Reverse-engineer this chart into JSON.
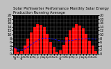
{
  "title": "Solar PV/Inverter Performance Monthly Solar Energy Production Running Average",
  "production": [
    3.2,
    1.0,
    1.5,
    4.2,
    7.8,
    11.2,
    13.8,
    15.5,
    15.0,
    13.8,
    10.5,
    6.2,
    3.5,
    1.2,
    1.8,
    4.8,
    8.5,
    12.0,
    13.5,
    15.2,
    14.8,
    13.2,
    10.2,
    6.8,
    4.2,
    1.5
  ],
  "running_avg": [
    3.2,
    2.1,
    1.9,
    2.5,
    3.5,
    4.8,
    5.9,
    7.0,
    7.8,
    8.1,
    8.1,
    7.8,
    7.5,
    7.1,
    6.8,
    6.6,
    6.7,
    6.9,
    7.1,
    7.4,
    7.6,
    7.8,
    7.8,
    7.8,
    7.7,
    7.5
  ],
  "month_labels": [
    "Nov\n'07",
    "Dec\n",
    "Jan\n'08",
    "Feb\n",
    "Mar\n",
    "Apr\n",
    "May\n",
    "Jun\n",
    "Jul\n",
    "Aug\n",
    "Sep\n",
    "Oct\n",
    "Nov\n",
    "Dec\n",
    "Jan\n'09",
    "Feb\n",
    "Mar\n",
    "Apr\n",
    "May\n",
    "Jun\n",
    "Jul\n",
    "Aug\n",
    "Sep\n",
    "Oct\n",
    "Nov\n",
    "Dec\n"
  ],
  "bar_color": "#ff0000",
  "line_color": "#0000ff",
  "bg_color": "#000000",
  "plot_bg": "#000000",
  "outer_bg": "#c0c0c0",
  "grid_color": "#ffffff",
  "ytick_labels": [
    "20",
    "18",
    "16",
    "14",
    "12",
    "10",
    "8",
    "6",
    "4",
    "2",
    "0"
  ],
  "ytick_vals": [
    20,
    18,
    16,
    14,
    12,
    10,
    8,
    6,
    4,
    2,
    0
  ],
  "ylim": [
    0,
    20
  ],
  "title_fontsize": 3.8,
  "tick_fontsize": 3.5
}
